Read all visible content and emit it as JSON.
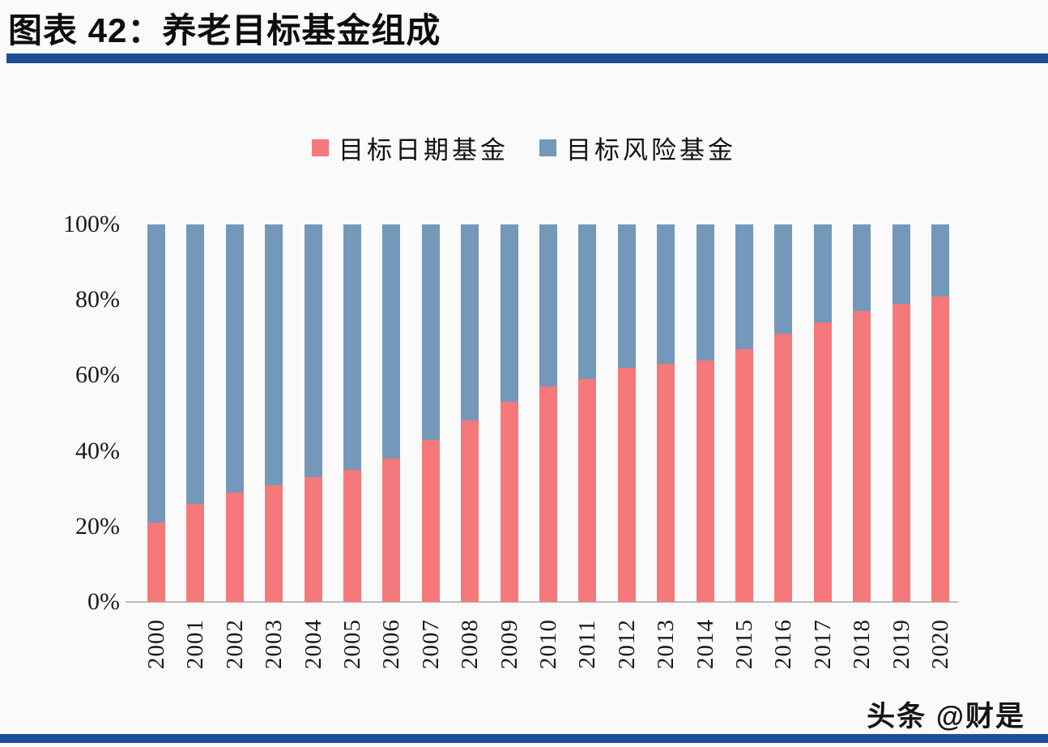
{
  "page": {
    "title": "图表  42：养老目标基金组成",
    "watermark": "头条 @财是",
    "colors": {
      "target_date": "#f5797a",
      "target_risk": "#7398ba",
      "title_rule": "#1b4c94",
      "footer_rule": "#1d4f9a",
      "axis_line": "#bcbcbc",
      "background": "#fbfafa"
    }
  },
  "chart_data": {
    "type": "bar",
    "stacked": true,
    "title": "图表 42：养老目标基金组成",
    "categories": [
      "2000",
      "2001",
      "2002",
      "2003",
      "2004",
      "2005",
      "2006",
      "2007",
      "2008",
      "2009",
      "2010",
      "2011",
      "2012",
      "2013",
      "2014",
      "2015",
      "2016",
      "2017",
      "2018",
      "2019",
      "2020"
    ],
    "series": [
      {
        "name": "目标日期基金",
        "color": "#f5797a",
        "values": [
          21,
          26,
          29,
          31,
          33,
          35,
          38,
          43,
          48,
          53,
          57,
          59,
          62,
          63,
          64,
          67,
          71,
          74,
          77,
          79,
          81
        ]
      },
      {
        "name": "目标风险基金",
        "color": "#7398ba",
        "values": [
          79,
          74,
          71,
          69,
          67,
          65,
          62,
          57,
          52,
          47,
          43,
          41,
          38,
          37,
          36,
          33,
          29,
          26,
          23,
          21,
          19
        ]
      }
    ],
    "unit": "%",
    "xlabel": "",
    "ylabel": "",
    "ylim": [
      0,
      100
    ],
    "y_ticks": [
      "0%",
      "20%",
      "40%",
      "60%",
      "80%",
      "100%"
    ],
    "grid": false,
    "legend_position": "top-center",
    "x_tick_rotation": -90
  }
}
